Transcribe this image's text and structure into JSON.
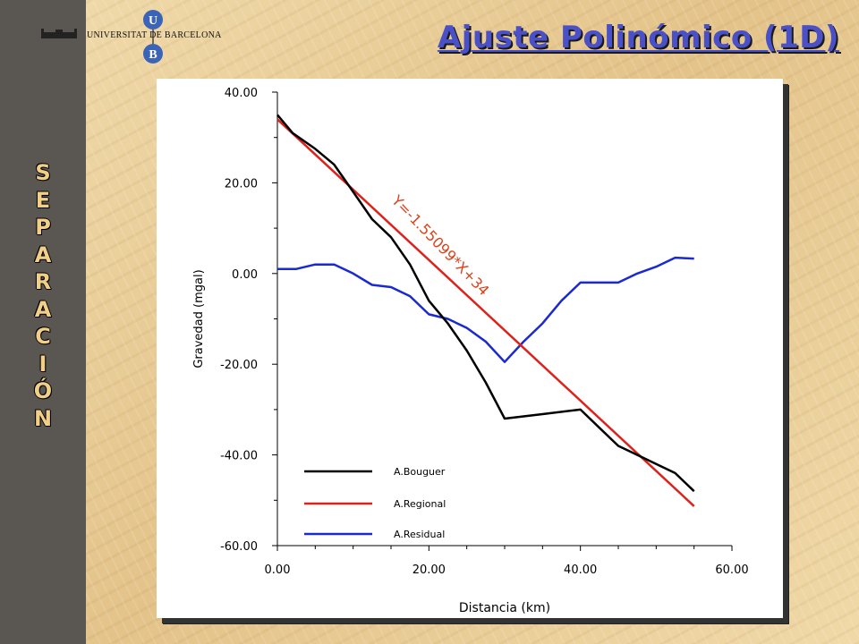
{
  "slide": {
    "title": "Ajuste Polinómico (1D)",
    "sidebar_word": [
      "S",
      "E",
      "P",
      "A",
      "R",
      "A",
      "C",
      "I",
      "Ó",
      "N"
    ],
    "logo": {
      "university": "UNIVERSITAT DE BARCELONA",
      "letter_top": "U",
      "letter_bottom": "B"
    }
  },
  "colors": {
    "sidebar_bg": "#5a5652",
    "sidebar_text": "#f2cf87",
    "title": "#4a50c8",
    "bouguer": "#000000",
    "regional": "#e0201a",
    "residual": "#1a2ad0",
    "annotation": "#e0401a"
  },
  "chart_data": {
    "type": "line",
    "xlabel": "Distancia (km)",
    "ylabel": "Gravedad (mgal)",
    "xlim": [
      0,
      60
    ],
    "ylim": [
      -60,
      40
    ],
    "x_ticks": [
      "0.00",
      "20.00",
      "40.00",
      "60.00"
    ],
    "y_ticks": [
      "40.00",
      "20.00",
      "0.00",
      "-20.00",
      "-40.00",
      "-60.00"
    ],
    "annotation": "Y=-1.55099*X+34",
    "legend_position": "lower-left",
    "series": [
      {
        "name": "A.Bouguer",
        "color": "#000000",
        "x": [
          0,
          2,
          5,
          7.5,
          10,
          12.5,
          15,
          17.5,
          20,
          22.5,
          25,
          27.5,
          30,
          35,
          40,
          42.5,
          45,
          47.5,
          50,
          52.5,
          55
        ],
        "y": [
          35,
          31,
          27.5,
          24,
          18,
          12,
          8,
          2,
          -6,
          -11,
          -17,
          -24,
          -32,
          -31,
          -30,
          -34,
          -38,
          -40,
          -42,
          -44,
          -48
        ]
      },
      {
        "name": "A.Regional",
        "color": "#e0201a",
        "x": [
          0,
          55
        ],
        "y": [
          34,
          -51.3
        ]
      },
      {
        "name": "A.Residual",
        "color": "#1a2ad0",
        "x": [
          0,
          2.5,
          5,
          7.5,
          10,
          12.5,
          15,
          17.5,
          20,
          22.5,
          25,
          27.5,
          30,
          32.5,
          35,
          37.5,
          40,
          42.5,
          45,
          47.5,
          50,
          52.5,
          55
        ],
        "y": [
          1,
          1,
          2,
          2,
          0,
          -2.5,
          -3,
          -5,
          -9,
          -10,
          -12,
          -15,
          -19.5,
          -15,
          -11,
          -6,
          -2,
          -2,
          -2,
          0,
          1.5,
          3.5,
          3.3
        ]
      }
    ]
  }
}
